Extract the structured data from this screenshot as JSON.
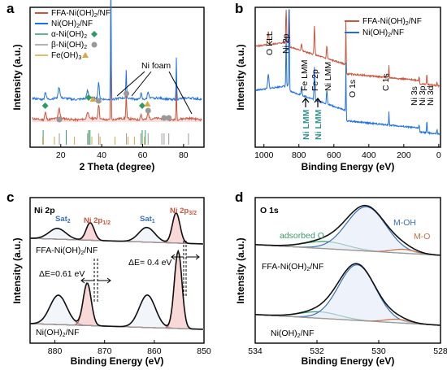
{
  "colors": {
    "ffa": "#c8553d",
    "niohnf": "#1f6fe0",
    "alpha": "#2f9b64",
    "beta": "#999999",
    "feoh3": "#d9a73e",
    "teal": "#2f8f8f",
    "sat": "#3a6fb8",
    "envelope": "#111111",
    "fill_light": "#f4b8b8",
    "o_adsorbed": "#3a9a6a",
    "o_mo": "#c0704a"
  },
  "chart_data": [
    {
      "panel": "a",
      "type": "line",
      "xlabel": "2 Theta (degree)",
      "ylabel": "Intensity (a.u.)",
      "xlim": [
        5,
        90
      ],
      "xticks": [
        20,
        40,
        60,
        80
      ],
      "legend": {
        "placement": "top-left",
        "entries": [
          "FFA-Ni(OH)2/NF",
          "Ni(OH)2/NF",
          "α-Ni(OH)2",
          "β-Ni(OH)2",
          "Fe(OH)3"
        ]
      },
      "annotations": [
        "Ni foam"
      ],
      "series": [
        {
          "name": "FFA-Ni(OH)2/NF",
          "peaks_2theta": [
            12.5,
            19.2,
            33.1,
            38.5,
            44.5,
            52.0,
            59.2,
            62.7,
            76.5
          ]
        },
        {
          "name": "Ni(OH)2/NF",
          "peaks_2theta": [
            12.5,
            19.2,
            33.1,
            38.5,
            44.5,
            52.0,
            59.2,
            62.7,
            76.5
          ]
        }
      ],
      "markers": {
        "alpha_2theta": [
          12.4,
          33.6,
          59.8
        ],
        "beta_2theta": [
          19.3,
          38.5,
          52.1,
          62.7,
          70.5,
          72.8
        ],
        "feoh3_2theta": [
          35.8,
          62.4
        ]
      },
      "reference_lines": {
        "alpha": [
          11.4,
          22.7,
          33.6,
          34.3,
          59.8,
          61.3
        ],
        "beta": [
          19.3,
          33.1,
          38.5,
          52.1,
          59.1,
          62.7,
          69.4,
          70.5,
          72.8,
          82.4
        ],
        "feoh3": [
          11.2,
          16.9,
          26.7,
          35.2,
          39.2,
          46.5,
          52.9,
          56.0,
          60.9
        ]
      }
    },
    {
      "panel": "b",
      "type": "line",
      "xlabel": "Binding Energy (eV)",
      "ylabel": "Intensity (a.u.)",
      "xlim": [
        1050,
        -10
      ],
      "xreversed": true,
      "xticks": [
        1000,
        800,
        600,
        400,
        200,
        0
      ],
      "legend": {
        "placement": "top-right",
        "entries": [
          "FFA-Ni(OH)2/NF",
          "Ni(OH)2/NF"
        ]
      },
      "peak_labels": [
        "O KLL",
        "Ni 2p",
        "Fe LMM",
        "Fe 2p",
        "Ni LMM",
        "O 1s",
        "C 1s",
        "Ni 3s",
        "Ni 3p",
        "Ni 3d",
        "Ni LMM",
        "Ni LMM"
      ],
      "peaks_eV": {
        "O KLL": 975,
        "Ni 2p": 856,
        "Fe LMM": 785,
        "Fe 2p": 712,
        "Ni LMM": 640,
        "O 1s": 531,
        "C 1s": 285,
        "Ni 3s": 111,
        "Ni 3p": 68,
        "Ni 3d": 10
      }
    },
    {
      "panel": "c",
      "type": "line",
      "xlabel": "Binding Energy (eV)",
      "ylabel": "Intensity (a.u.)",
      "xlim": [
        885,
        850
      ],
      "xreversed": true,
      "xticks": [
        880,
        870,
        860,
        850
      ],
      "title": "Ni 2p",
      "peak_labels": {
        "sat2": "Sat",
        "np12": "Ni 2p",
        "sat1": "Sat",
        "np32": "Ni 2p"
      },
      "peak_label_subs": {
        "sat2": "2",
        "np12": "1/2",
        "sat1": "1",
        "np32": "3/2"
      },
      "sample_labels": [
        "FFA-Ni(OH)2/NF",
        "Ni(OH)2/NF"
      ],
      "annotations": [
        "ΔE=0.61 eV",
        "ΔE= 0.4 eV"
      ],
      "series": [
        {
          "name": "FFA-Ni(OH)2/NF",
          "peaks": [
            {
              "center": 879.5,
              "height": 0.22,
              "fwhm": 4.0
            },
            {
              "center": 872.9,
              "height": 0.36,
              "fwhm": 1.9
            },
            {
              "center": 861.5,
              "height": 0.3,
              "fwhm": 3.8
            },
            {
              "center": 855.6,
              "height": 0.62,
              "fwhm": 1.8
            }
          ]
        },
        {
          "name": "Ni(OH)2/NF",
          "peaks": [
            {
              "center": 879.3,
              "height": 0.38,
              "fwhm": 4.0
            },
            {
              "center": 873.5,
              "height": 0.55,
              "fwhm": 1.9
            },
            {
              "center": 861.4,
              "height": 0.42,
              "fwhm": 3.8
            },
            {
              "center": 855.2,
              "height": 1.0,
              "fwhm": 1.8
            }
          ]
        }
      ]
    },
    {
      "panel": "d",
      "type": "line",
      "xlabel": "Binding Energy (eV)",
      "ylabel": "Intensity (a.u.)",
      "xlim": [
        534,
        528
      ],
      "xreversed": true,
      "xticks": [
        534,
        532,
        530,
        528
      ],
      "title": "O 1s",
      "peak_labels": [
        "adsorbed O",
        "M-OH",
        "M-O"
      ],
      "sample_labels": [
        "FFA-Ni(OH)2/NF",
        "Ni(OH)2/NF"
      ],
      "series": [
        {
          "name": "FFA-Ni(OH)2/NF",
          "peaks": [
            {
              "component": "adsorbed O",
              "center": 531.7,
              "height": 0.13,
              "fwhm": 1.6
            },
            {
              "component": "M-OH",
              "center": 530.4,
              "height": 0.8,
              "fwhm": 1.5
            },
            {
              "component": "M-O",
              "center": 529.2,
              "height": 0.07,
              "fwhm": 0.9
            }
          ]
        },
        {
          "name": "Ni(OH)2/NF",
          "peaks": [
            {
              "component": "adsorbed O",
              "center": 531.9,
              "height": 0.11,
              "fwhm": 1.5
            },
            {
              "component": "M-OH",
              "center": 530.7,
              "height": 0.95,
              "fwhm": 1.4
            },
            {
              "component": "M-O",
              "center": 529.4,
              "height": 0.06,
              "fwhm": 0.9
            }
          ]
        }
      ]
    }
  ],
  "panels": {
    "a": {
      "letter": "a",
      "legend": {
        "l1_pre": "FFA-Ni(OH)",
        "l1_sub": "2",
        "l1_post": "/NF",
        "l2_pre": "Ni(OH)",
        "l2_sub": "2",
        "l2_post": "/NF",
        "l3_pre": "α-Ni(OH)",
        "l3_sub": "2",
        "l4_pre": "β-Ni(OH)",
        "l4_sub": "2",
        "l5_pre": "Fe(OH)",
        "l5_sub": "3"
      }
    },
    "b": {
      "letter": "b",
      "legend": {
        "l1_pre": "FFA-Ni(OH)",
        "l1_sub": "2",
        "l1_post": "/NF",
        "l2_pre": "Ni(OH)",
        "l2_sub": "2",
        "l2_post": "/NF"
      }
    },
    "c": {
      "letter": "c",
      "s1_pre": "FFA-Ni(OH)",
      "s1_sub": "2",
      "s1_post": "/NF",
      "s2_pre": "Ni(OH)",
      "s2_sub": "2",
      "s2_post": "/NF"
    },
    "d": {
      "letter": "d",
      "s1_pre": "FFA-Ni(OH)",
      "s1_sub": "2",
      "s1_post": "/NF",
      "s2_pre": "Ni(OH)",
      "s2_sub": "2",
      "s2_post": "/NF"
    }
  }
}
